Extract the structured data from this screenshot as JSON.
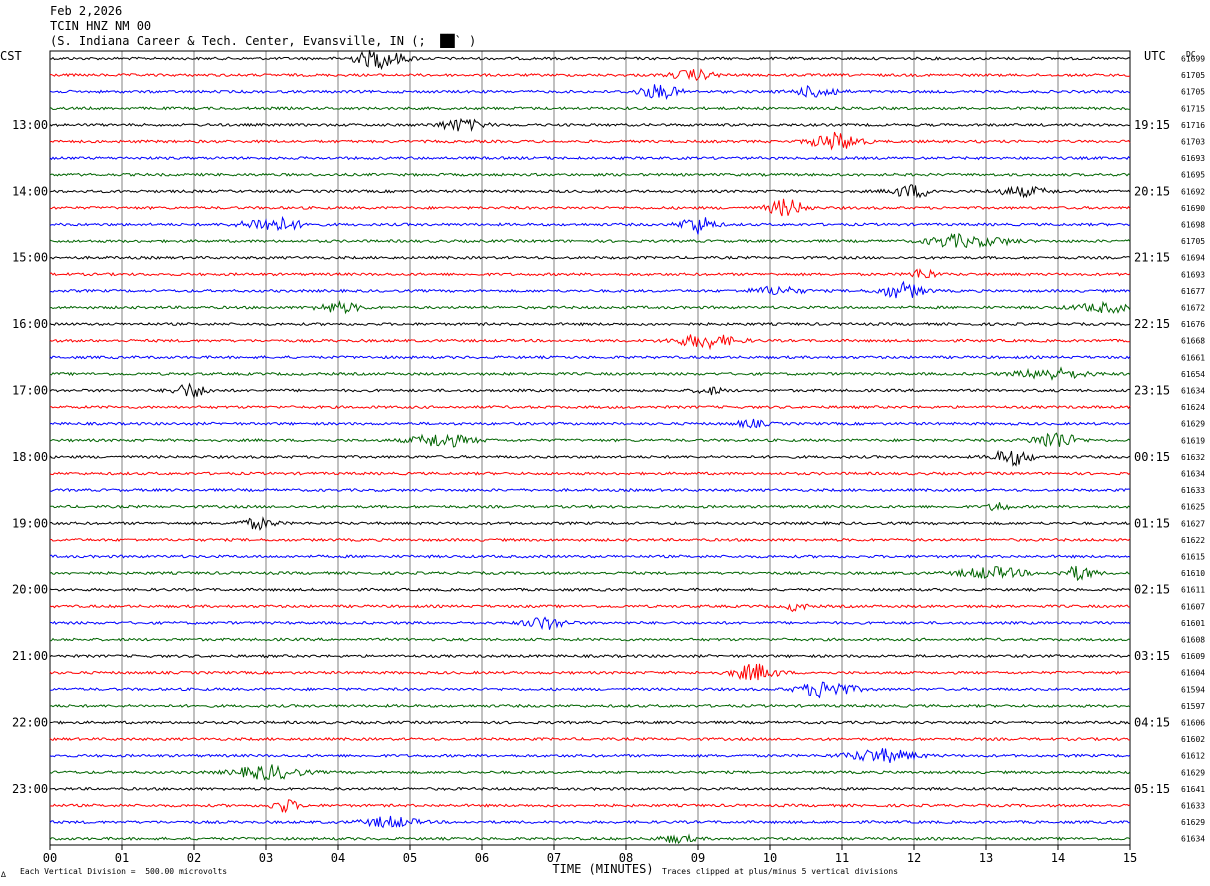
{
  "header": {
    "date": "Feb 2,2026",
    "station": "TCIN HNZ NM 00",
    "location": "(S. Indiana Career & Tech. Center, Evansville, IN (;  ██` )"
  },
  "left_axis_label": "CST",
  "right_axis_label": "UTC",
  "dc_label": "DC",
  "footer": {
    "scale_note": "Each Vertical Division =  500.00 microvolts",
    "clip_note": "Traces clipped at plus/minus 5 vertical divisions",
    "corner_mark": "∆"
  },
  "chart_data": {
    "type": "line",
    "xlabel": "TIME (MINUTES)",
    "x_ticks": [
      "00",
      "01",
      "02",
      "03",
      "04",
      "05",
      "06",
      "07",
      "08",
      "09",
      "10",
      "11",
      "12",
      "13",
      "14",
      "15"
    ],
    "xlim": [
      0,
      15
    ],
    "trace_colors": [
      "#000000",
      "#ff0000",
      "#0000ff",
      "#006400"
    ],
    "rows_per_hour": 4,
    "left_hour_labels": [
      {
        "row": 4,
        "label": "13:00"
      },
      {
        "row": 8,
        "label": "14:00"
      },
      {
        "row": 12,
        "label": "15:00"
      },
      {
        "row": 16,
        "label": "16:00"
      },
      {
        "row": 20,
        "label": "17:00"
      },
      {
        "row": 24,
        "label": "18:00"
      },
      {
        "row": 28,
        "label": "19:00"
      },
      {
        "row": 32,
        "label": "20:00"
      },
      {
        "row": 36,
        "label": "21:00"
      },
      {
        "row": 40,
        "label": "22:00"
      },
      {
        "row": 44,
        "label": "23:00"
      }
    ],
    "right_hour_labels": [
      {
        "row": 4,
        "label": "19:15"
      },
      {
        "row": 8,
        "label": "20:15"
      },
      {
        "row": 12,
        "label": "21:15"
      },
      {
        "row": 16,
        "label": "22:15"
      },
      {
        "row": 20,
        "label": "23:15"
      },
      {
        "row": 24,
        "label": "00:15"
      },
      {
        "row": 28,
        "label": "01:15"
      },
      {
        "row": 32,
        "label": "02:15"
      },
      {
        "row": 36,
        "label": "03:15"
      },
      {
        "row": 40,
        "label": "04:15"
      },
      {
        "row": 44,
        "label": "05:15"
      }
    ],
    "dc_offsets": [
      "61699",
      "61705",
      "61705",
      "61715",
      "61716",
      "61703",
      "61693",
      "61695",
      "61692",
      "61690",
      "61698",
      "61705",
      "61694",
      "61693",
      "61677",
      "61672",
      "61676",
      "61668",
      "61661",
      "61654",
      "61634",
      "61624",
      "61629",
      "61619",
      "61632",
      "61634",
      "61633",
      "61625",
      "61627",
      "61622",
      "61615",
      "61610",
      "61611",
      "61607",
      "61601",
      "61608",
      "61609",
      "61604",
      "61594",
      "61597",
      "61606",
      "61602",
      "61612",
      "61629",
      "61641",
      "61633",
      "61629",
      "61634"
    ]
  }
}
